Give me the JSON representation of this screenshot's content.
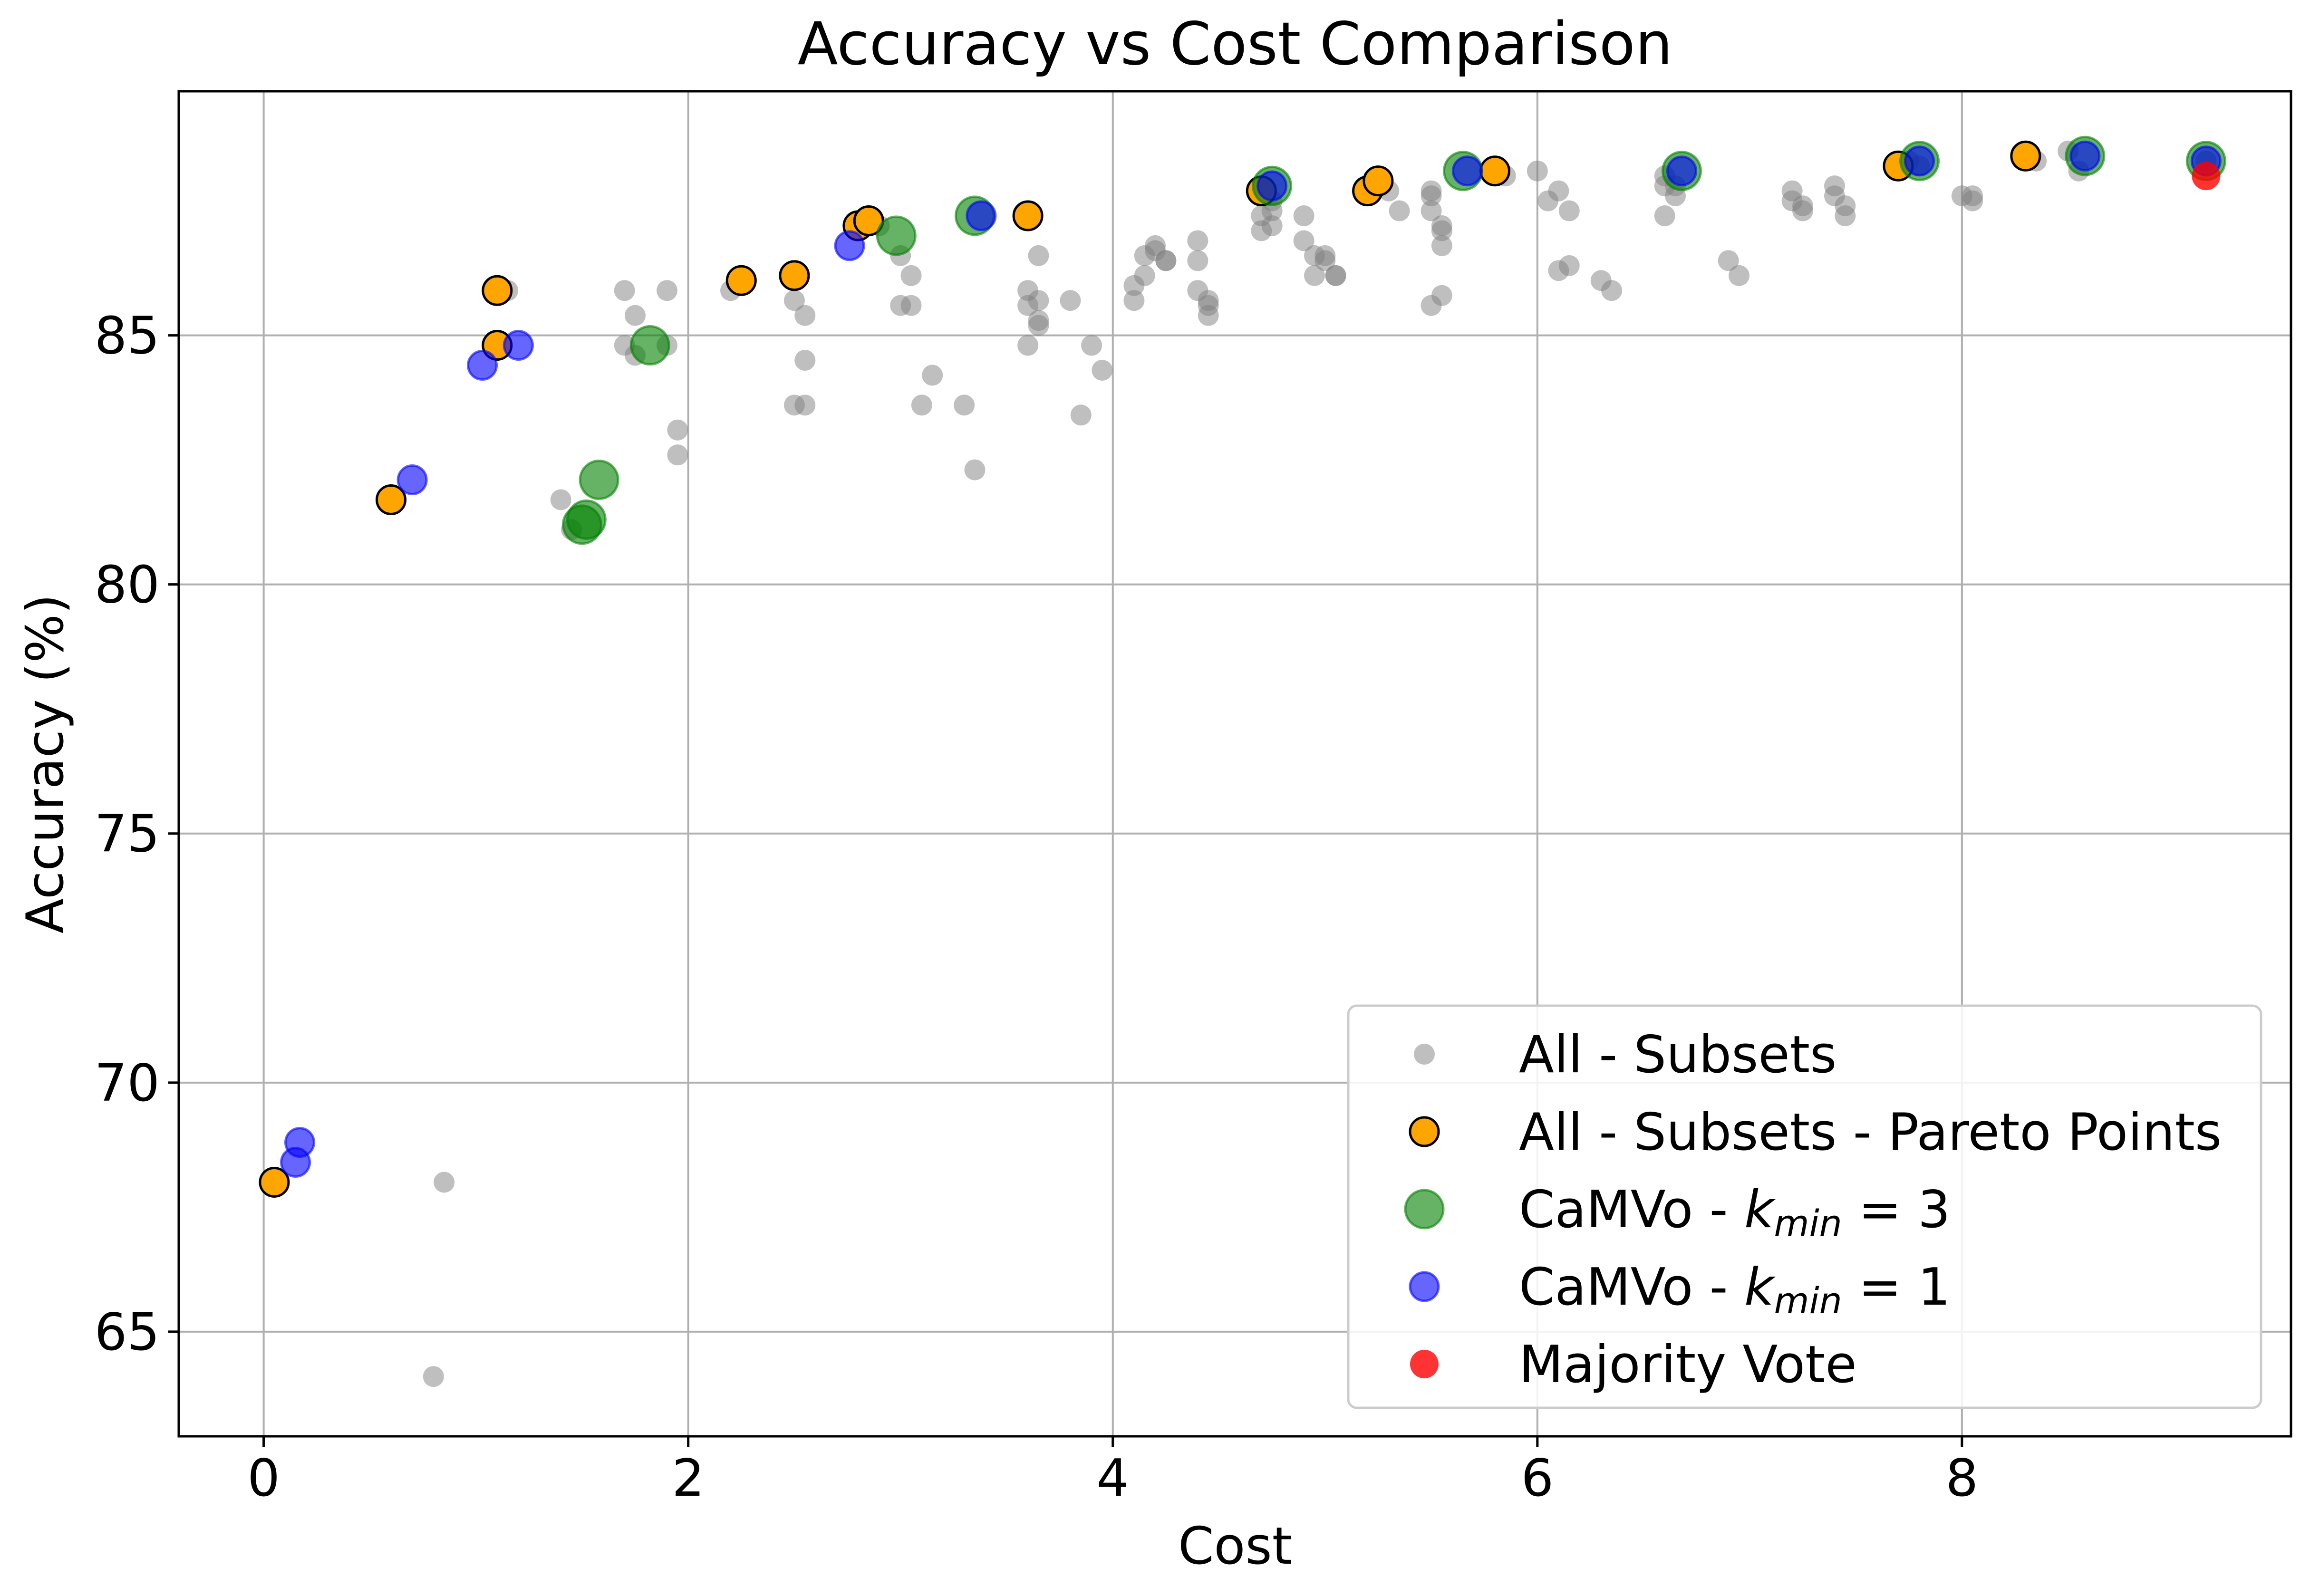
{
  "chart_data": {
    "type": "scatter",
    "title": "Accuracy vs Cost Comparison",
    "xlabel": "Cost",
    "ylabel": "Accuracy (%)",
    "xlim": [
      -0.4,
      9.55
    ],
    "ylim": [
      62.9,
      89.9
    ],
    "xticks": [
      0,
      2,
      4,
      6,
      8
    ],
    "yticks": [
      65,
      70,
      75,
      80,
      85
    ],
    "xtick_labels": [
      "0",
      "2",
      "4",
      "6",
      "8"
    ],
    "ytick_labels": [
      "65",
      "70",
      "75",
      "80",
      "85"
    ],
    "grid": true,
    "legend_position": "bottom-right",
    "series": [
      {
        "name": "All - Subsets",
        "legend_label": "All - Subsets",
        "color": "#808080",
        "opacity": 0.5,
        "edge": "none",
        "size": "small",
        "points": [
          [
            0.8,
            64.1
          ],
          [
            0.85,
            68.0
          ],
          [
            0.6,
            81.7
          ],
          [
            1.15,
            85.9
          ],
          [
            1.4,
            81.7
          ],
          [
            1.45,
            81.1
          ],
          [
            1.7,
            85.9
          ],
          [
            1.7,
            84.8
          ],
          [
            1.75,
            85.4
          ],
          [
            1.75,
            84.6
          ],
          [
            1.9,
            85.9
          ],
          [
            1.9,
            84.8
          ],
          [
            1.95,
            83.1
          ],
          [
            1.95,
            82.6
          ],
          [
            2.2,
            85.9
          ],
          [
            2.5,
            85.7
          ],
          [
            2.5,
            83.6
          ],
          [
            2.55,
            83.6
          ],
          [
            2.55,
            84.5
          ],
          [
            2.55,
            85.4
          ],
          [
            2.9,
            87.2
          ],
          [
            3.0,
            86.6
          ],
          [
            3.0,
            85.6
          ],
          [
            3.05,
            86.2
          ],
          [
            3.05,
            85.6
          ],
          [
            3.1,
            83.6
          ],
          [
            3.15,
            84.2
          ],
          [
            3.3,
            83.6
          ],
          [
            3.35,
            82.3
          ],
          [
            3.6,
            85.9
          ],
          [
            3.6,
            85.6
          ],
          [
            3.6,
            84.8
          ],
          [
            3.65,
            86.6
          ],
          [
            3.65,
            85.7
          ],
          [
            3.65,
            85.2
          ],
          [
            3.65,
            85.3
          ],
          [
            3.8,
            85.7
          ],
          [
            3.85,
            83.4
          ],
          [
            3.9,
            84.8
          ],
          [
            3.95,
            84.3
          ],
          [
            4.1,
            86.0
          ],
          [
            4.1,
            85.7
          ],
          [
            4.15,
            86.6
          ],
          [
            4.15,
            86.2
          ],
          [
            4.2,
            86.8
          ],
          [
            4.2,
            86.7
          ],
          [
            4.25,
            86.5
          ],
          [
            4.25,
            86.5
          ],
          [
            4.4,
            86.9
          ],
          [
            4.4,
            86.5
          ],
          [
            4.4,
            85.9
          ],
          [
            4.45,
            85.7
          ],
          [
            4.45,
            85.4
          ],
          [
            4.45,
            85.6
          ],
          [
            4.7,
            87.1
          ],
          [
            4.7,
            87.4
          ],
          [
            4.75,
            87.2
          ],
          [
            4.75,
            87.5
          ],
          [
            4.75,
            87.7
          ],
          [
            4.9,
            86.9
          ],
          [
            4.9,
            87.4
          ],
          [
            4.95,
            86.6
          ],
          [
            4.95,
            86.2
          ],
          [
            5.0,
            86.6
          ],
          [
            5.0,
            86.5
          ],
          [
            5.05,
            86.2
          ],
          [
            5.05,
            86.2
          ],
          [
            5.3,
            87.9
          ],
          [
            5.35,
            87.5
          ],
          [
            5.5,
            87.9
          ],
          [
            5.5,
            87.8
          ],
          [
            5.5,
            87.5
          ],
          [
            5.5,
            85.6
          ],
          [
            5.55,
            87.1
          ],
          [
            5.55,
            86.8
          ],
          [
            5.55,
            85.8
          ],
          [
            5.55,
            87.2
          ],
          [
            5.85,
            88.2
          ],
          [
            6.0,
            88.3
          ],
          [
            6.05,
            87.7
          ],
          [
            6.1,
            87.9
          ],
          [
            6.1,
            86.3
          ],
          [
            6.15,
            87.5
          ],
          [
            6.15,
            86.4
          ],
          [
            6.3,
            86.1
          ],
          [
            6.35,
            85.9
          ],
          [
            6.6,
            88.2
          ],
          [
            6.6,
            88.0
          ],
          [
            6.6,
            87.4
          ],
          [
            6.65,
            87.8
          ],
          [
            6.65,
            88.0
          ],
          [
            6.9,
            86.5
          ],
          [
            6.95,
            86.2
          ],
          [
            7.2,
            87.9
          ],
          [
            7.2,
            87.7
          ],
          [
            7.25,
            87.6
          ],
          [
            7.25,
            87.5
          ],
          [
            7.4,
            88.0
          ],
          [
            7.4,
            87.8
          ],
          [
            7.45,
            87.6
          ],
          [
            7.45,
            87.4
          ],
          [
            7.75,
            88.5
          ],
          [
            7.8,
            88.4
          ],
          [
            8.0,
            87.8
          ],
          [
            8.05,
            87.8
          ],
          [
            8.05,
            87.7
          ],
          [
            8.3,
            88.6
          ],
          [
            8.35,
            88.5
          ],
          [
            8.5,
            88.7
          ],
          [
            8.55,
            88.3
          ],
          [
            9.15,
            88.5
          ]
        ]
      },
      {
        "name": "All - Subsets - Pareto Points",
        "legend_label": "All - Subsets - Pareto Points",
        "color": "#FFA500",
        "opacity": 1.0,
        "edge": "#000000",
        "size": "medium",
        "points": [
          [
            0.05,
            68.0
          ],
          [
            0.6,
            81.7
          ],
          [
            1.1,
            84.8
          ],
          [
            1.1,
            85.9
          ],
          [
            2.25,
            86.1
          ],
          [
            2.5,
            86.2
          ],
          [
            2.8,
            87.2
          ],
          [
            2.85,
            87.3
          ],
          [
            3.6,
            87.4
          ],
          [
            4.7,
            87.9
          ],
          [
            5.2,
            87.9
          ],
          [
            5.25,
            88.1
          ],
          [
            5.8,
            88.3
          ],
          [
            7.7,
            88.4
          ],
          [
            8.3,
            88.6
          ]
        ]
      },
      {
        "name": "CaMVo - k_min = 3",
        "legend_prefix": "CaMVo - ",
        "legend_k": "k",
        "legend_sub": "min",
        "legend_suffix": " = 3",
        "color": "#008000",
        "opacity": 0.6,
        "edge": "#008000",
        "size": "large",
        "points": [
          [
            1.5,
            81.2
          ],
          [
            1.52,
            81.3
          ],
          [
            1.58,
            82.1
          ],
          [
            1.82,
            84.8
          ],
          [
            2.98,
            87.0
          ],
          [
            3.35,
            87.4
          ],
          [
            4.75,
            88.0
          ],
          [
            5.65,
            88.3
          ],
          [
            6.68,
            88.3
          ],
          [
            7.8,
            88.5
          ],
          [
            8.58,
            88.6
          ],
          [
            9.15,
            88.5
          ]
        ]
      },
      {
        "name": "CaMVo - k_min = 1",
        "legend_prefix": "CaMVo - ",
        "legend_k": "k",
        "legend_sub": "min",
        "legend_suffix": " = 1",
        "color": "#0000FF",
        "opacity": 0.6,
        "edge": "#0000FF",
        "size": "medium",
        "points": [
          [
            0.15,
            68.4
          ],
          [
            0.17,
            68.8
          ],
          [
            0.7,
            82.1
          ],
          [
            1.03,
            84.4
          ],
          [
            1.2,
            84.8
          ],
          [
            2.76,
            86.8
          ],
          [
            3.38,
            87.4
          ],
          [
            4.75,
            88.0
          ],
          [
            5.67,
            88.3
          ],
          [
            6.68,
            88.3
          ],
          [
            7.8,
            88.5
          ],
          [
            8.58,
            88.6
          ],
          [
            9.15,
            88.5
          ]
        ]
      },
      {
        "name": "Majority Vote",
        "legend_label": "Majority Vote",
        "color": "#FF0000",
        "opacity": 0.8,
        "edge": "none",
        "size": "medium",
        "points": [
          [
            9.15,
            88.2
          ]
        ]
      }
    ]
  }
}
